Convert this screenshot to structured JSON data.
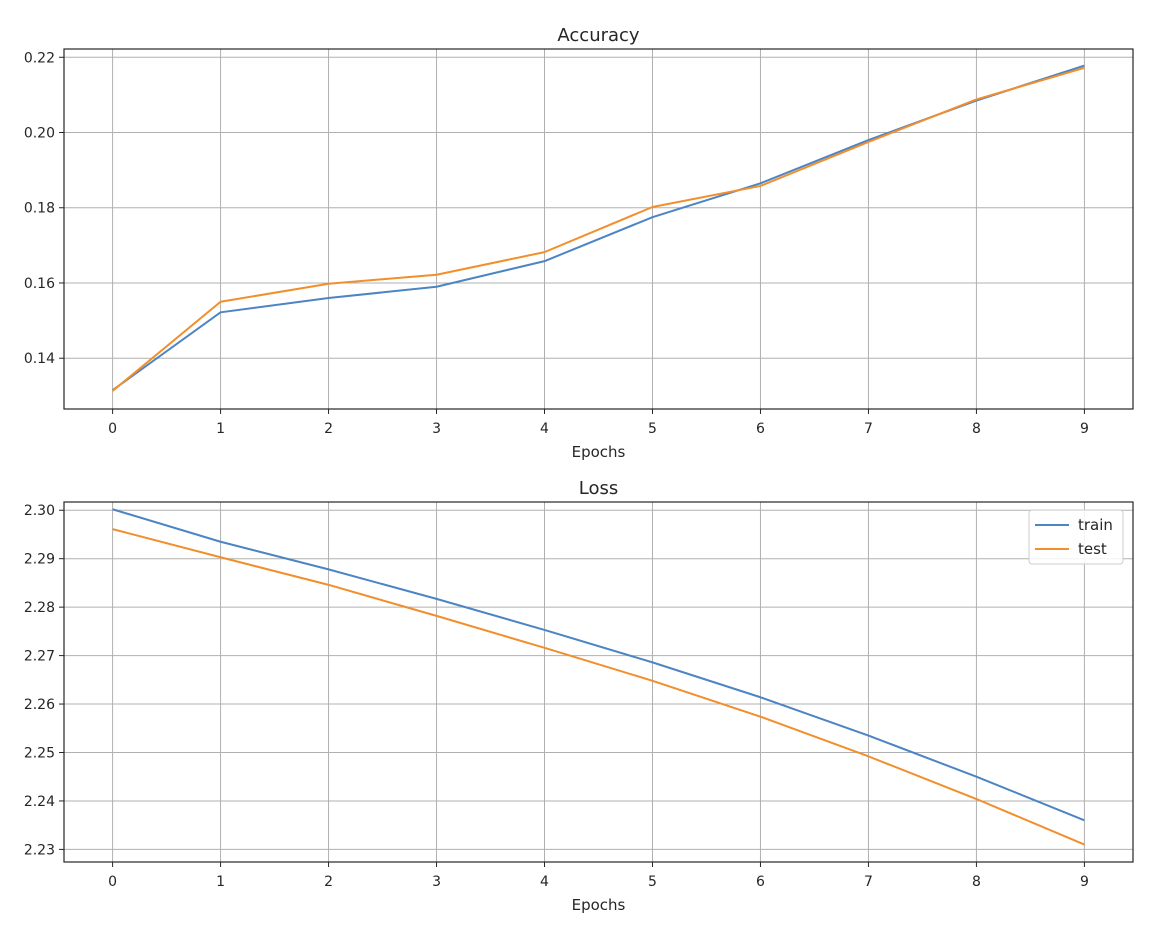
{
  "chart_data": [
    {
      "type": "line",
      "title": "Accuracy",
      "xlabel": "Epochs",
      "ylabel": "",
      "x": [
        0,
        1,
        2,
        3,
        4,
        5,
        6,
        7,
        8,
        9
      ],
      "xlim": [
        -0.45,
        9.45
      ],
      "ylim": [
        0.1265,
        0.2222
      ],
      "xticks": [
        "0",
        "1",
        "2",
        "3",
        "4",
        "5",
        "6",
        "7",
        "8",
        "9"
      ],
      "yticks": [
        "0.14",
        "0.16",
        "0.18",
        "0.20",
        "0.22"
      ],
      "grid": true,
      "series": [
        {
          "name": "train",
          "color": "#4C84C4",
          "values": [
            0.1315,
            0.1522,
            0.156,
            0.159,
            0.1658,
            0.1775,
            0.1865,
            0.198,
            0.2085,
            0.2178
          ]
        },
        {
          "name": "test",
          "color": "#F28E2B",
          "values": [
            0.1313,
            0.155,
            0.1598,
            0.1622,
            0.1682,
            0.1802,
            0.1858,
            0.1975,
            0.2088,
            0.2172
          ]
        }
      ]
    },
    {
      "type": "line",
      "title": "Loss",
      "xlabel": "Epochs",
      "ylabel": "",
      "x": [
        0,
        1,
        2,
        3,
        4,
        5,
        6,
        7,
        8,
        9
      ],
      "xlim": [
        -0.45,
        9.45
      ],
      "ylim": [
        2.2274,
        2.3017
      ],
      "xticks": [
        "0",
        "1",
        "2",
        "3",
        "4",
        "5",
        "6",
        "7",
        "8",
        "9"
      ],
      "yticks": [
        "2.30",
        "2.29",
        "2.28",
        "2.27",
        "2.26",
        "2.25",
        "2.24",
        "2.23"
      ],
      "grid": true,
      "legend": {
        "position": "top-right",
        "entries": [
          "train",
          "test"
        ]
      },
      "series": [
        {
          "name": "train",
          "color": "#4C84C4",
          "values": [
            2.3002,
            2.2935,
            2.2878,
            2.2817,
            2.2753,
            2.2686,
            2.2614,
            2.2535,
            2.245,
            2.236
          ]
        },
        {
          "name": "test",
          "color": "#F28E2B",
          "values": [
            2.2961,
            2.2903,
            2.2846,
            2.2782,
            2.2716,
            2.2648,
            2.2574,
            2.2492,
            2.2404,
            2.231
          ]
        }
      ]
    }
  ]
}
